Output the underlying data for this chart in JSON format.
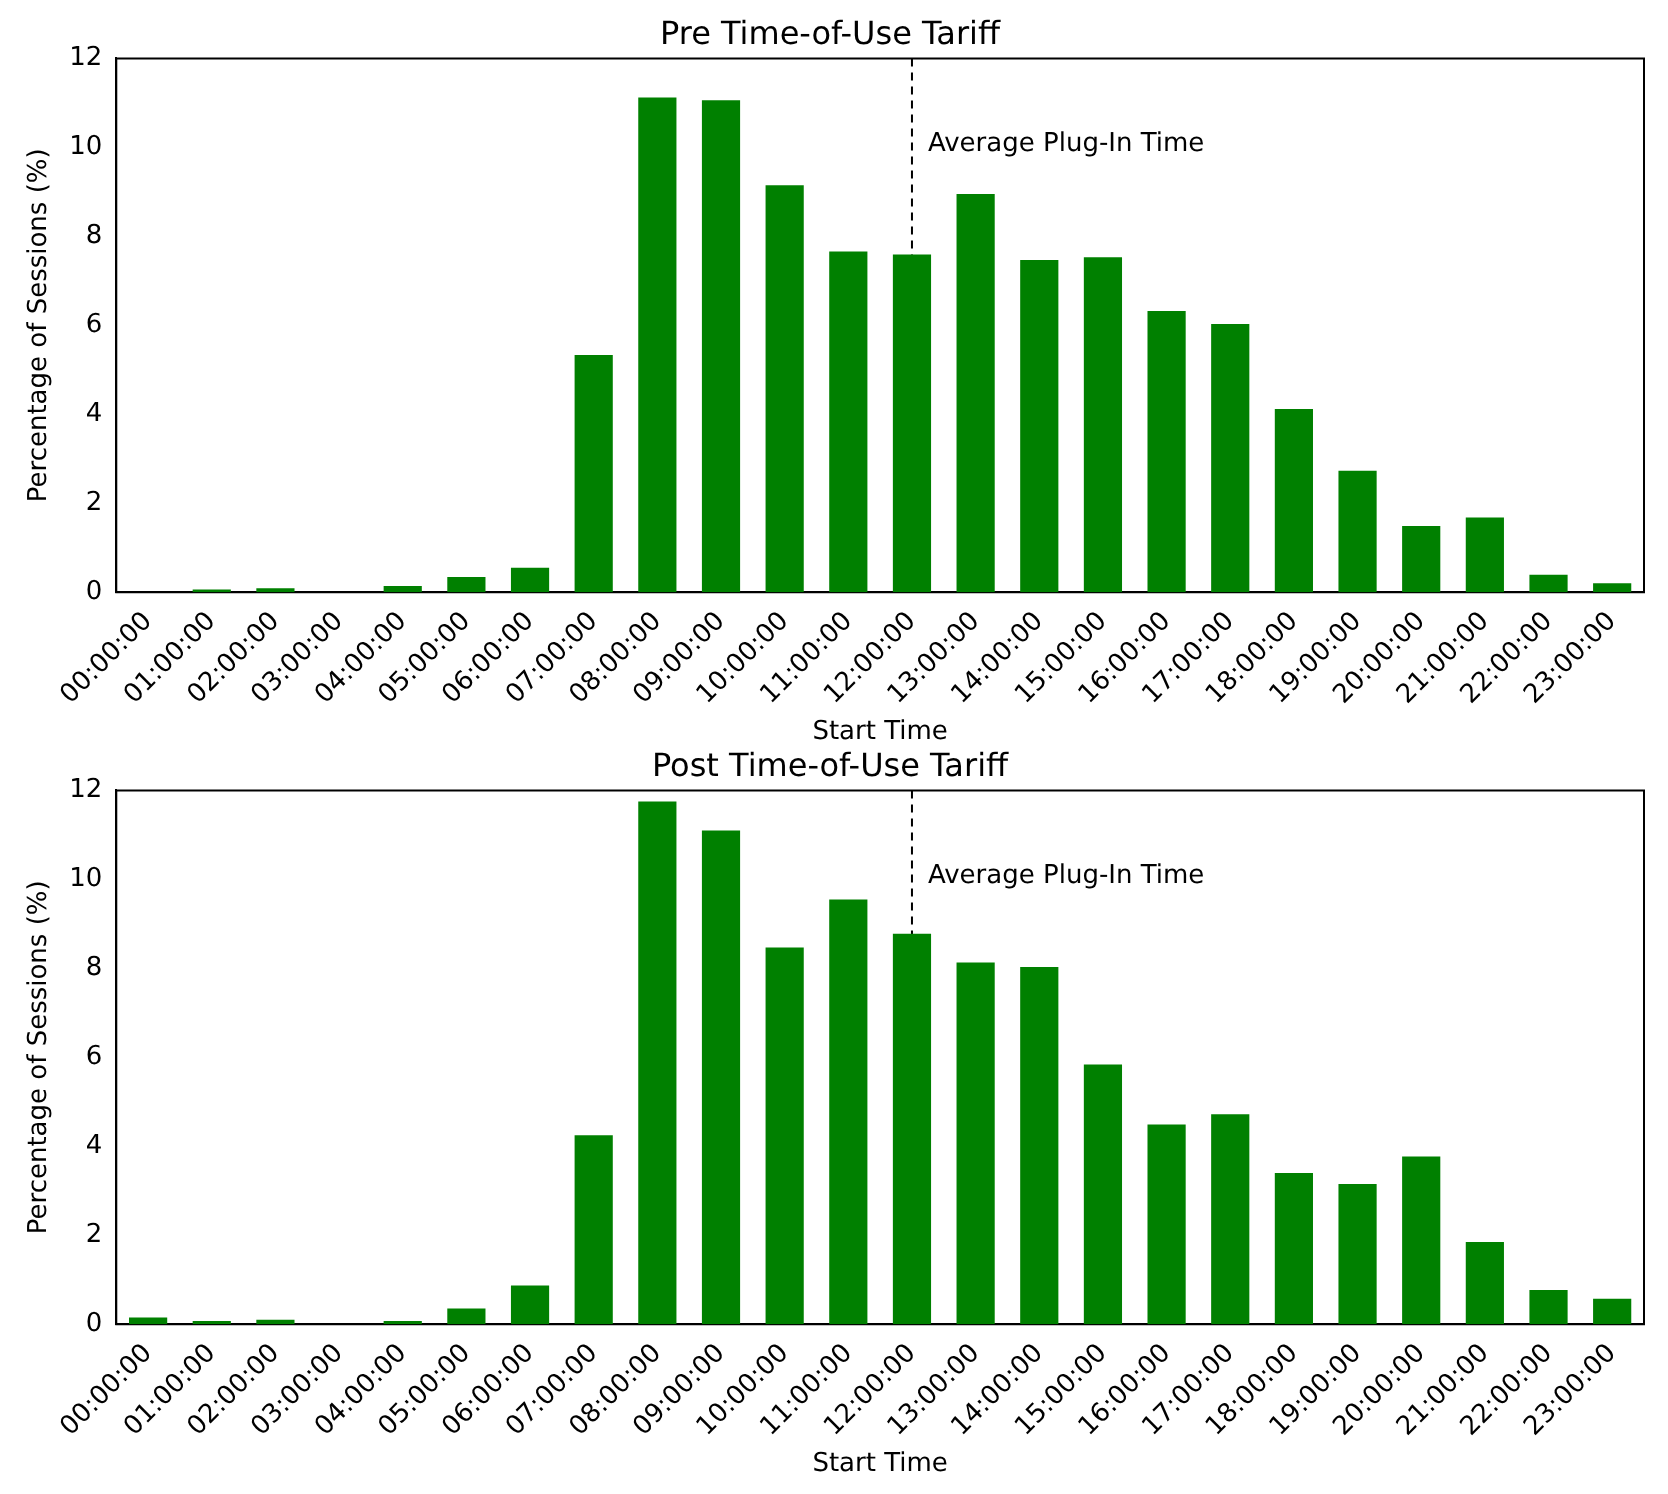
{
  "chart_data": [
    {
      "type": "bar",
      "title": "Pre Time-of-Use Tariff",
      "xlabel": "Start Time",
      "ylabel": "Percentage of Sessions (%)",
      "categories": [
        "00:00:00",
        "01:00:00",
        "02:00:00",
        "03:00:00",
        "04:00:00",
        "05:00:00",
        "06:00:00",
        "07:00:00",
        "08:00:00",
        "09:00:00",
        "10:00:00",
        "11:00:00",
        "12:00:00",
        "13:00:00",
        "14:00:00",
        "15:00:00",
        "16:00:00",
        "17:00:00",
        "18:00:00",
        "19:00:00",
        "20:00:00",
        "21:00:00",
        "22:00:00",
        "23:00:00"
      ],
      "values": [
        0,
        0.06,
        0.09,
        0,
        0.14,
        0.34,
        0.55,
        5.33,
        11.12,
        11.06,
        9.15,
        7.66,
        7.59,
        8.95,
        7.47,
        7.53,
        6.32,
        6.03,
        4.12,
        2.73,
        1.49,
        1.68,
        0.39,
        0.2
      ],
      "color": "#008000",
      "ylim": [
        0,
        12
      ],
      "yticks": [
        0,
        2,
        4,
        6,
        8,
        10,
        12
      ],
      "grid": false,
      "ref_lines": [
        {
          "axis": "x",
          "value": "12:00:00",
          "label": "Average Plug-In Time",
          "color": "#000000",
          "line_style": "dashed"
        }
      ]
    },
    {
      "type": "bar",
      "title": "Post Time-of-Use Tariff",
      "xlabel": "Start Time",
      "ylabel": "Percentage of Sessions (%)",
      "categories": [
        "00:00:00",
        "01:00:00",
        "02:00:00",
        "03:00:00",
        "04:00:00",
        "05:00:00",
        "06:00:00",
        "07:00:00",
        "08:00:00",
        "09:00:00",
        "10:00:00",
        "11:00:00",
        "12:00:00",
        "13:00:00",
        "14:00:00",
        "15:00:00",
        "16:00:00",
        "17:00:00",
        "18:00:00",
        "19:00:00",
        "20:00:00",
        "21:00:00",
        "22:00:00",
        "23:00:00"
      ],
      "values": [
        0.15,
        0.07,
        0.1,
        0,
        0.07,
        0.35,
        0.87,
        4.25,
        11.75,
        11.1,
        8.47,
        9.55,
        8.78,
        8.13,
        8.03,
        5.84,
        4.49,
        4.72,
        3.4,
        3.15,
        3.77,
        1.85,
        0.77,
        0.57
      ],
      "color": "#008000",
      "ylim": [
        0,
        12
      ],
      "yticks": [
        0,
        2,
        4,
        6,
        8,
        10,
        12
      ],
      "grid": false,
      "ref_lines": [
        {
          "axis": "x",
          "value": "12:00:00",
          "label": "Average Plug-In Time",
          "color": "#000000",
          "line_style": "dashed"
        }
      ]
    }
  ]
}
